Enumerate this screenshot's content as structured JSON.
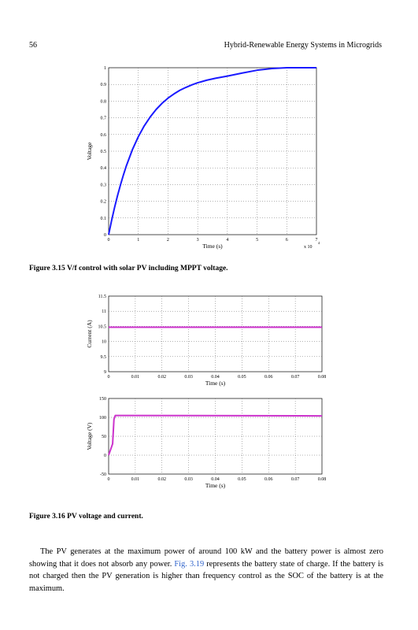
{
  "header": {
    "page_number": "56",
    "running_title": "Hybrid-Renewable Energy Systems in Microgrids"
  },
  "captions": {
    "fig315": "Figure 3.15  V/f control with solar PV including MPPT voltage.",
    "fig316": "Figure 3.16  PV voltage and current."
  },
  "paragraph": {
    "part1": "The PV generates at the maximum power of around 100 kW and the battery power is almost zero showing that it does not absorb any power. ",
    "link": "Fig. 3.19",
    "part2": " represents the battery state of charge. If the battery is not charged then the PV generation is higher than frequency control as the SOC of the battery is at the maximum."
  },
  "colors": {
    "voltage_curve": "#1a1aff",
    "pv_curves": "#cc33cc",
    "link": "#3366cc"
  },
  "chart_data": [
    {
      "id": "fig315",
      "type": "line",
      "xlabel": "Time (s)",
      "ylabel": "Voltage",
      "xlim": [
        0,
        7
      ],
      "ylim": [
        0,
        1
      ],
      "xticks": [
        "0",
        "1",
        "2",
        "3",
        "4",
        "5",
        "6",
        "7"
      ],
      "yticks": [
        "0",
        "0.1",
        "0.2",
        "0.3",
        "0.4",
        "0.5",
        "0.6",
        "0.7",
        "0.8",
        "0.9",
        "1"
      ],
      "x_multiplier": "x 10",
      "x_multiplier_exp": "4",
      "grid": true,
      "series": [
        {
          "x": [
            0,
            0.1,
            0.2,
            0.3,
            0.4,
            0.5,
            0.6,
            0.8,
            1.0,
            1.2,
            1.4,
            1.6,
            1.8,
            2.0,
            2.2,
            2.4,
            2.6,
            2.8,
            3.0,
            3.3,
            3.6,
            4.0,
            4.5,
            5.0,
            5.5,
            6.0,
            6.5,
            7.0
          ],
          "y": [
            0,
            0.085,
            0.163,
            0.234,
            0.299,
            0.359,
            0.414,
            0.509,
            0.587,
            0.652,
            0.705,
            0.75,
            0.787,
            0.818,
            0.843,
            0.865,
            0.882,
            0.897,
            0.91,
            0.925,
            0.937,
            0.95,
            0.968,
            0.985,
            0.995,
            1.0,
            1.0,
            1.0
          ]
        }
      ]
    },
    {
      "id": "fig316_current",
      "type": "line",
      "xlabel": "Time (s)",
      "ylabel": "Current (A)",
      "xlim": [
        0,
        0.08
      ],
      "ylim": [
        9,
        11.5
      ],
      "xticks": [
        "0",
        "0.01",
        "0.02",
        "0.03",
        "0.04",
        "0.05",
        "0.06",
        "0.07",
        "0.08"
      ],
      "yticks": [
        "9",
        "9.5",
        "10",
        "10.5",
        "11",
        "11.5"
      ],
      "grid": true,
      "series": [
        {
          "x": [
            0,
            0.08
          ],
          "y": [
            10.47,
            10.47
          ]
        }
      ]
    },
    {
      "id": "fig316_voltage",
      "type": "line",
      "xlabel": "Time (s)",
      "ylabel": "Voltage (V)",
      "xlim": [
        0,
        0.08
      ],
      "ylim": [
        -50,
        150
      ],
      "xticks": [
        "0",
        "0.01",
        "0.02",
        "0.03",
        "0.04",
        "0.05",
        "0.06",
        "0.07",
        "0.08"
      ],
      "yticks": [
        "-50",
        "0",
        "50",
        "100",
        "150"
      ],
      "grid": true,
      "series": [
        {
          "x": [
            0,
            0.0015,
            0.002,
            0.0025,
            0.004,
            0.08
          ],
          "y": [
            0,
            30,
            95,
            105,
            105,
            104
          ]
        }
      ]
    }
  ]
}
